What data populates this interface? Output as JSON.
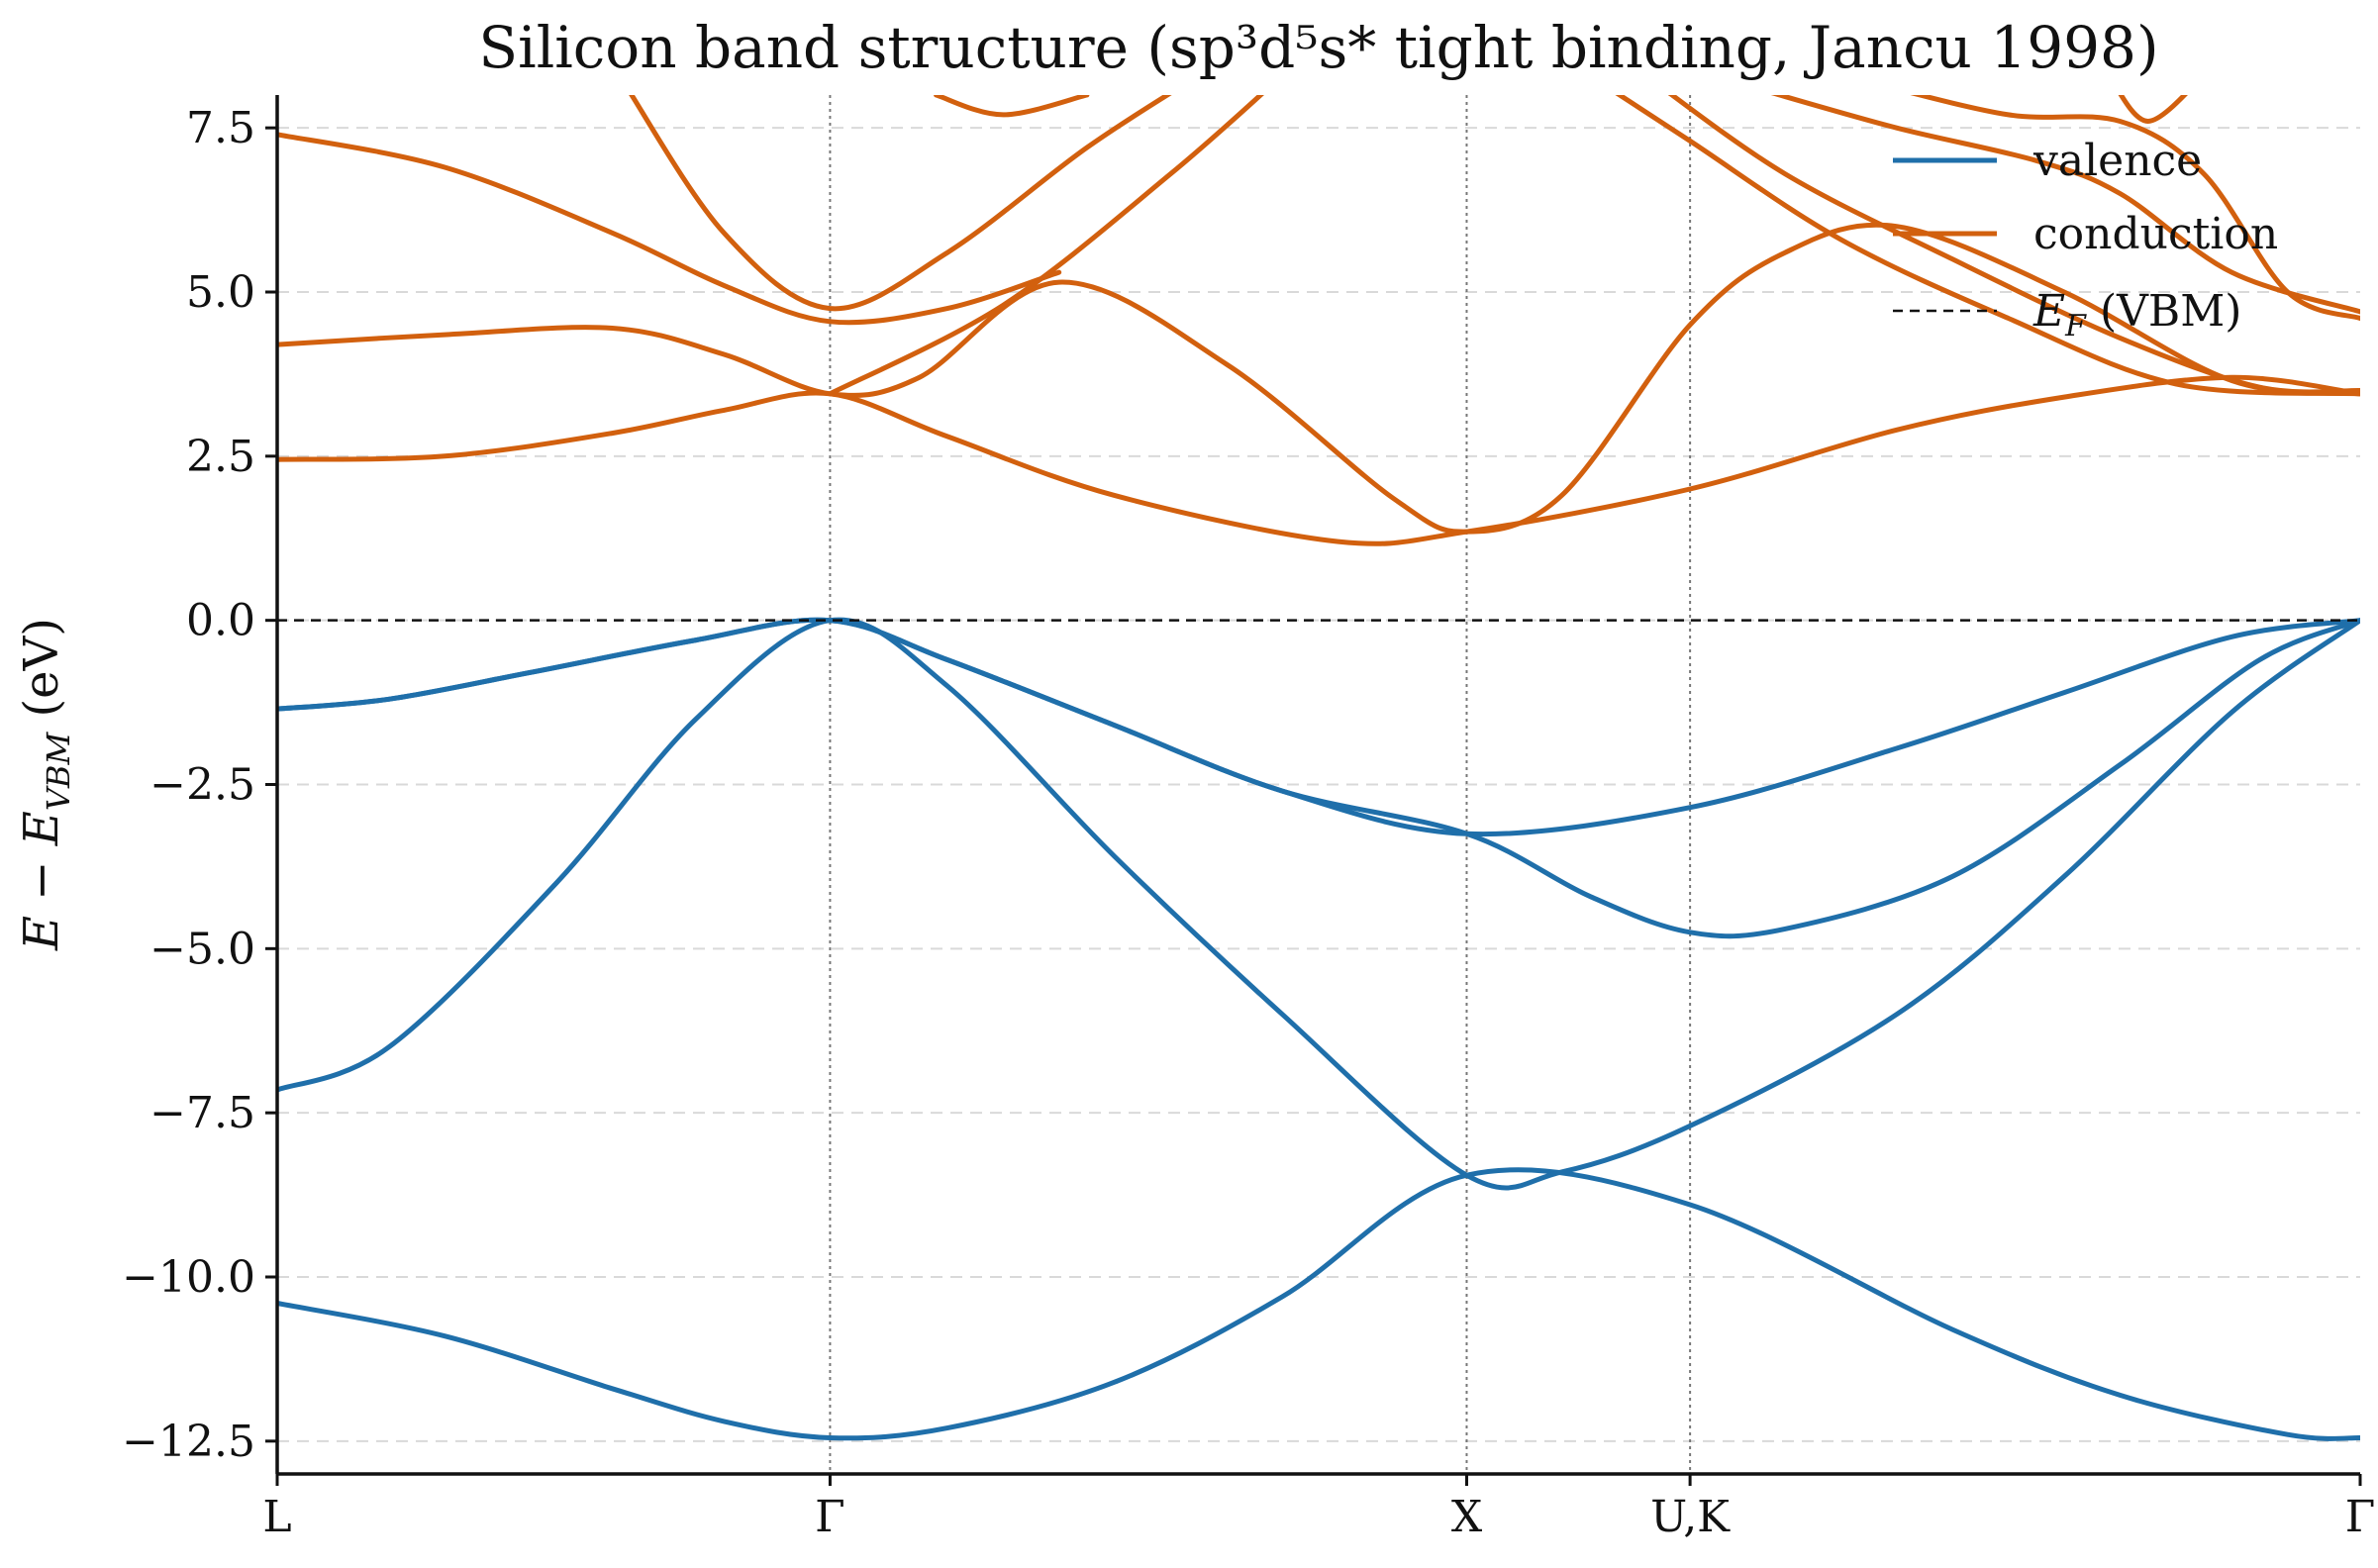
{
  "chart_data": {
    "type": "line",
    "title": "Silicon band structure (sp³d⁵s* tight binding, Jancu 1998)",
    "ylabel": "E − E_VBM (eV)",
    "ylabel_main": "E − E",
    "ylabel_sub": "VBM",
    "ylabel_unit": " (eV)",
    "ylim": [
      -13.0,
      8.0
    ],
    "xlim": [
      0,
      3.73
    ],
    "grid": "horizontal dashed",
    "legend_position": "top-right",
    "colors": {
      "valence": "#1f6faa",
      "conduction": "#d2600e",
      "fermi": "#111111",
      "kline": "#777777"
    },
    "yticks": [
      {
        "value": 7.5,
        "label": "7.5"
      },
      {
        "value": 5.0,
        "label": "5.0"
      },
      {
        "value": 2.5,
        "label": "2.5"
      },
      {
        "value": 0.0,
        "label": "0.0"
      },
      {
        "value": -2.5,
        "label": "−2.5"
      },
      {
        "value": -5.0,
        "label": "−5.0"
      },
      {
        "value": -7.5,
        "label": "−7.5"
      },
      {
        "value": -10.0,
        "label": "−10.0"
      },
      {
        "value": -12.5,
        "label": "−12.5"
      }
    ],
    "kpoints": [
      {
        "label": "L",
        "x": 0.0
      },
      {
        "label": "Γ",
        "x": 0.99
      },
      {
        "label": "X",
        "x": 2.13
      },
      {
        "label": "U,K",
        "x": 2.53
      },
      {
        "label": "Γ",
        "x": 3.73
      }
    ],
    "fermi_level": {
      "name": "E_F (VBM)",
      "name_main": "E",
      "name_sub": "F",
      "name_rest": " (VBM)",
      "y": 0.0
    },
    "legend": [
      {
        "label": "valence",
        "color": "#1f6faa",
        "style": "solid"
      },
      {
        "label": "conduction",
        "color": "#d2600e",
        "style": "solid"
      },
      {
        "label": "E_F (VBM)",
        "color": "#111111",
        "style": "dashed"
      }
    ],
    "series": [
      {
        "group": "valence",
        "x": [
          0.0,
          0.3,
          0.6,
          0.8,
          0.99,
          1.2,
          1.5,
          1.8,
          2.13,
          2.53,
          3.0,
          3.3,
          3.6,
          3.73
        ],
        "y": [
          -10.4,
          -10.9,
          -11.7,
          -12.2,
          -12.45,
          -12.3,
          -11.6,
          -10.3,
          -8.45,
          -8.9,
          -10.8,
          -11.8,
          -12.4,
          -12.45
        ]
      },
      {
        "group": "valence",
        "x": [
          0.0,
          0.2,
          0.5,
          0.75,
          0.99,
          1.2,
          1.5,
          1.8,
          2.13,
          2.3,
          2.53,
          2.9,
          3.2,
          3.5,
          3.73
        ],
        "y": [
          -7.15,
          -6.5,
          -4.0,
          -1.5,
          0.0,
          -1.0,
          -3.6,
          -6.0,
          -8.45,
          -8.4,
          -7.7,
          -6.0,
          -3.9,
          -1.4,
          0.0
        ]
      },
      {
        "group": "valence",
        "x": [
          0.0,
          0.2,
          0.45,
          0.75,
          0.99,
          1.2,
          1.5,
          1.8,
          2.13,
          2.53,
          2.9,
          3.2,
          3.5,
          3.73
        ],
        "y": [
          -1.35,
          -1.2,
          -0.8,
          -0.3,
          0.0,
          -0.6,
          -1.6,
          -2.6,
          -3.25,
          -2.85,
          -1.95,
          -1.1,
          -0.25,
          0.0
        ]
      },
      {
        "group": "valence",
        "x": [
          0.0,
          0.2,
          0.45,
          0.75,
          0.99,
          1.2,
          1.5,
          1.8,
          2.13,
          2.35,
          2.53,
          2.7,
          3.0,
          3.3,
          3.55,
          3.73
        ],
        "y": [
          -1.35,
          -1.2,
          -0.8,
          -0.3,
          0.0,
          -0.6,
          -1.6,
          -2.6,
          -3.25,
          -4.2,
          -4.75,
          -4.7,
          -3.9,
          -2.2,
          -0.6,
          0.0
        ]
      },
      {
        "group": "conduction",
        "x": [
          0.0,
          0.3,
          0.6,
          0.8,
          0.99,
          1.2,
          1.5,
          1.9,
          2.13,
          2.53,
          2.9,
          3.2,
          3.5,
          3.73
        ],
        "y": [
          2.45,
          2.5,
          2.85,
          3.2,
          3.45,
          2.8,
          1.9,
          1.2,
          1.35,
          2.0,
          2.9,
          3.4,
          3.7,
          3.45
        ]
      },
      {
        "group": "conduction",
        "x": [
          0.0,
          0.3,
          0.6,
          0.8,
          0.99,
          1.15,
          1.4,
          1.7,
          2.0,
          2.13,
          2.3,
          2.53,
          2.7,
          2.9,
          3.2,
          3.5,
          3.73
        ],
        "y": [
          4.2,
          4.35,
          4.45,
          4.05,
          3.45,
          3.7,
          5.15,
          3.9,
          1.85,
          1.35,
          1.9,
          4.5,
          5.6,
          6.0,
          5.0,
          3.65,
          3.45
        ]
      },
      {
        "group": "conduction",
        "x": [
          0.0,
          0.3,
          0.6,
          0.8,
          0.99,
          1.2,
          1.4
        ],
        "y": [
          7.4,
          6.9,
          5.9,
          5.1,
          4.55,
          4.75,
          5.3
        ]
      },
      {
        "group": "conduction",
        "x": [
          0.99,
          1.3,
          1.6,
          1.8
        ],
        "y": [
          3.45,
          4.8,
          6.8,
          8.3
        ]
      },
      {
        "group": "conduction",
        "x": [
          0.62,
          0.8,
          0.99,
          1.2,
          1.45,
          1.65
        ],
        "y": [
          8.2,
          5.9,
          4.75,
          5.6,
          7.2,
          8.3
        ]
      },
      {
        "group": "conduction",
        "x": [
          1.18,
          1.3,
          1.45
        ],
        "y": [
          8.0,
          7.7,
          8.0
        ]
      },
      {
        "group": "conduction",
        "x": [
          2.35,
          2.53,
          2.8,
          3.1,
          3.4,
          3.73
        ],
        "y": [
          8.3,
          7.3,
          5.8,
          4.6,
          3.6,
          3.45
        ]
      },
      {
        "group": "conduction",
        "x": [
          2.45,
          2.7,
          3.0,
          3.3,
          3.55,
          3.73
        ],
        "y": [
          8.3,
          6.8,
          5.5,
          4.3,
          3.55,
          3.5
        ]
      },
      {
        "group": "conduction",
        "x": [
          2.65,
          2.9,
          3.15,
          3.3,
          3.5,
          3.73
        ],
        "y": [
          8.1,
          7.5,
          7.0,
          6.5,
          5.3,
          4.7
        ]
      },
      {
        "group": "conduction",
        "x": [
          2.85,
          3.1,
          3.3,
          3.45,
          3.6,
          3.73
        ],
        "y": [
          8.2,
          7.7,
          7.6,
          6.8,
          5.0,
          4.6
        ]
      },
      {
        "group": "conduction",
        "x": [
          3.28,
          3.35,
          3.45
        ],
        "y": [
          8.3,
          7.6,
          8.3
        ]
      }
    ]
  }
}
